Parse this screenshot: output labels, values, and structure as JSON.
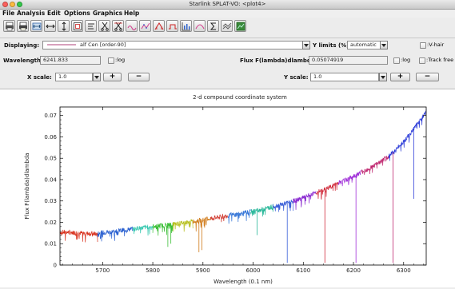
{
  "window": {
    "title": "Starlink SPLAT-VO: <plot4>"
  },
  "menu": {
    "items": [
      "File",
      "Analysis",
      "Edit",
      "Options",
      "Graphics",
      "Help"
    ]
  },
  "toolbar": {
    "icons": [
      "print-icon",
      "print-postscript-icon",
      "fit-width-icon",
      "fit-horizontal-icon",
      "fit-vertical-icon",
      "zoom-region-icon",
      "properties-icon",
      "cut-icon",
      "uncut-icon",
      "fit-line-icon",
      "fit-polynomial-icon",
      "interpolate-icon",
      "line-properties-icon",
      "ranges-icon",
      "smooth-icon",
      "stats-icon",
      "compare-icon",
      "image-icon"
    ]
  },
  "displaying": {
    "label": "Displaying:",
    "value": "alf Cen [order-90]",
    "line_color": "#b0407a"
  },
  "ylimits": {
    "label": "Y limits (%):",
    "value": "automatic"
  },
  "vhair": {
    "label": ":V-hair",
    "checked": false
  },
  "wavelength": {
    "label": "Wavelength:",
    "value": "6241.833",
    "log_label": ":log"
  },
  "flux": {
    "label": "Flux F(lambda)dlambda:",
    "value": "0.05074919",
    "log_label": ":log"
  },
  "trackfree": {
    "label": ":Track free"
  },
  "xscale": {
    "label": "X scale:",
    "value": "1.0",
    "plus": "+",
    "minus": "−"
  },
  "yscale": {
    "label": "Y scale:",
    "value": "1.0",
    "plus": "+",
    "minus": "−"
  },
  "chart_data": {
    "type": "line",
    "title": "2-d compound coordinate system",
    "xlabel": "Wavelength (0.1 nm)",
    "ylabel": "Flux F(lambda)dlambda",
    "xlim": [
      5615,
      6345
    ],
    "ylim": [
      0,
      0.074
    ],
    "x_ticks": [
      5700,
      5800,
      5900,
      6000,
      6100,
      6200,
      6300
    ],
    "y_ticks": [
      0,
      0.01,
      0.02,
      0.03,
      0.04,
      0.05,
      0.06,
      0.07
    ],
    "y_tick_labels": [
      "0",
      "0.01",
      "0.02",
      "0.03",
      "0.04",
      "0.05",
      "0.06",
      "0.07"
    ],
    "grid": false,
    "series": [
      {
        "x": [
          5615,
          5690
        ],
        "y": [
          0.0155,
          0.0145
        ],
        "color": "#d8301c"
      },
      {
        "x": [
          5690,
          5760
        ],
        "y": [
          0.015,
          0.017
        ],
        "color": "#2a60d0"
      },
      {
        "x": [
          5760,
          5800
        ],
        "y": [
          0.017,
          0.0182
        ],
        "color": "#38c8b0"
      },
      {
        "x": [
          5800,
          5840
        ],
        "y": [
          0.0182,
          0.0192
        ],
        "color": "#3cbf38"
      },
      {
        "x": [
          5840,
          5880
        ],
        "y": [
          0.0192,
          0.0205
        ],
        "color": "#b8c020"
      },
      {
        "x": [
          5880,
          5915
        ],
        "y": [
          0.0205,
          0.0218
        ],
        "color": "#d07a18"
      },
      {
        "x": [
          5915,
          5950
        ],
        "y": [
          0.0218,
          0.0232
        ],
        "color": "#d03a30"
      },
      {
        "x": [
          5950,
          5995
        ],
        "y": [
          0.0232,
          0.025
        ],
        "color": "#3878d8"
      },
      {
        "x": [
          5995,
          6040
        ],
        "y": [
          0.025,
          0.0275
        ],
        "color": "#2ab89a"
      },
      {
        "x": [
          6040,
          6080
        ],
        "y": [
          0.0275,
          0.03
        ],
        "color": "#3a5fd8"
      },
      {
        "x": [
          6080,
          6125
        ],
        "y": [
          0.03,
          0.034
        ],
        "color": "#8a2ad0"
      },
      {
        "x": [
          6125,
          6170
        ],
        "y": [
          0.034,
          0.0385
        ],
        "color": "#d02a3a"
      },
      {
        "x": [
          6170,
          6215
        ],
        "y": [
          0.0385,
          0.0435
        ],
        "color": "#a030d8"
      },
      {
        "x": [
          6215,
          6270
        ],
        "y": [
          0.0435,
          0.051
        ],
        "color": "#c02870"
      },
      {
        "x": [
          6270,
          6345
        ],
        "y": [
          0.051,
          0.072
        ],
        "color": "#2a3ad8"
      }
    ],
    "absorption_lines": [
      {
        "x": 5830,
        "y": 0.0085,
        "color": "#3cbf38"
      },
      {
        "x": 5836,
        "y": 0.01,
        "color": "#3cbf38"
      },
      {
        "x": 5892,
        "y": 0.006,
        "color": "#d07a18"
      },
      {
        "x": 5898,
        "y": 0.007,
        "color": "#d07a18"
      },
      {
        "x": 6008,
        "y": 0.014,
        "color": "#2ab89a"
      },
      {
        "x": 6068,
        "y": 0.001,
        "color": "#3a5fd8"
      },
      {
        "x": 6143,
        "y": 0.001,
        "color": "#d02a3a"
      },
      {
        "x": 6205,
        "y": 0.001,
        "color": "#a030d8"
      },
      {
        "x": 6279,
        "y": 0.001,
        "color": "#c02870"
      },
      {
        "x": 6320,
        "y": 0.031,
        "color": "#2a3ad8"
      }
    ]
  }
}
